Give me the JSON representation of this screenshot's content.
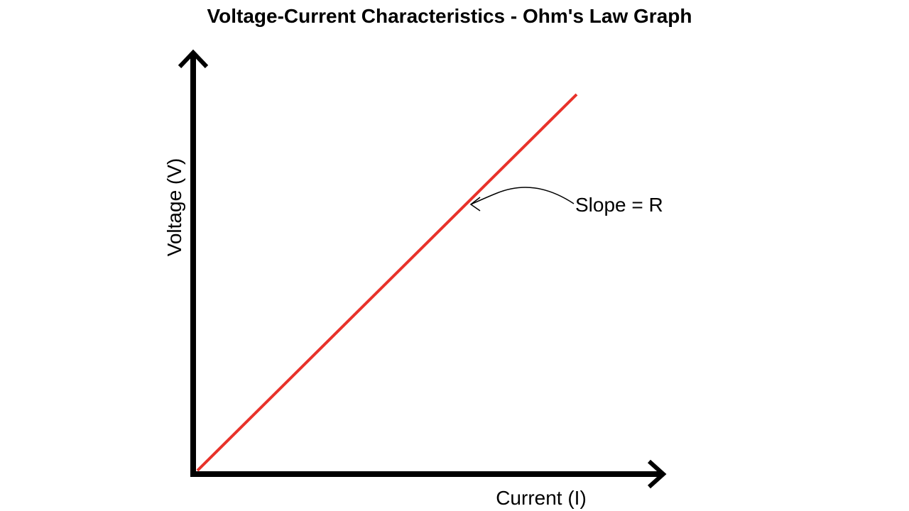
{
  "title": "Voltage-Current Characteristics - Ohm's Law Graph",
  "axes": {
    "y_label": "Voltage (V)",
    "x_label": "Current (I)"
  },
  "annotation": "Slope = R"
}
